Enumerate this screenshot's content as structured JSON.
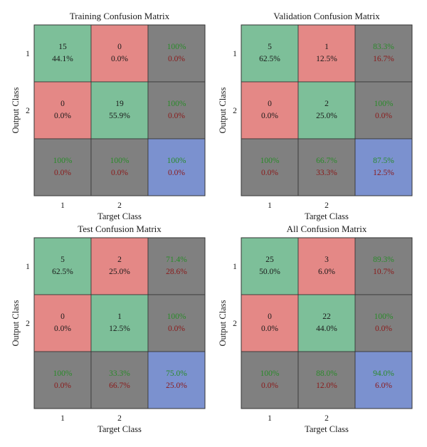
{
  "chart_data": [
    {
      "type": "confusion-matrix",
      "title": "Training Confusion Matrix",
      "xlabel": "Target Class",
      "ylabel": "Output Class",
      "x_ticks": [
        "1",
        "2"
      ],
      "y_ticks": [
        "1",
        "2"
      ],
      "cells": [
        [
          {
            "count": "15",
            "pct": "44.1%"
          },
          {
            "count": "0",
            "pct": "0.0%"
          },
          {
            "top": "100%",
            "bottom": "0.0%"
          }
        ],
        [
          {
            "count": "0",
            "pct": "0.0%"
          },
          {
            "count": "19",
            "pct": "55.9%"
          },
          {
            "top": "100%",
            "bottom": "0.0%"
          }
        ],
        [
          {
            "top": "100%",
            "bottom": "0.0%"
          },
          {
            "top": "100%",
            "bottom": "0.0%"
          },
          {
            "top": "100%",
            "bottom": "0.0%"
          }
        ]
      ]
    },
    {
      "type": "confusion-matrix",
      "title": "Validation Confusion Matrix",
      "xlabel": "Target Class",
      "ylabel": "Output Class",
      "x_ticks": [
        "1",
        "2"
      ],
      "y_ticks": [
        "1",
        "2"
      ],
      "cells": [
        [
          {
            "count": "5",
            "pct": "62.5%"
          },
          {
            "count": "1",
            "pct": "12.5%"
          },
          {
            "top": "83.3%",
            "bottom": "16.7%"
          }
        ],
        [
          {
            "count": "0",
            "pct": "0.0%"
          },
          {
            "count": "2",
            "pct": "25.0%"
          },
          {
            "top": "100%",
            "bottom": "0.0%"
          }
        ],
        [
          {
            "top": "100%",
            "bottom": "0.0%"
          },
          {
            "top": "66.7%",
            "bottom": "33.3%"
          },
          {
            "top": "87.5%",
            "bottom": "12.5%"
          }
        ]
      ]
    },
    {
      "type": "confusion-matrix",
      "title": "Test Confusion Matrix",
      "xlabel": "Target Class",
      "ylabel": "Output Class",
      "x_ticks": [
        "1",
        "2"
      ],
      "y_ticks": [
        "1",
        "2"
      ],
      "cells": [
        [
          {
            "count": "5",
            "pct": "62.5%"
          },
          {
            "count": "2",
            "pct": "25.0%"
          },
          {
            "top": "71.4%",
            "bottom": "28.6%"
          }
        ],
        [
          {
            "count": "0",
            "pct": "0.0%"
          },
          {
            "count": "1",
            "pct": "12.5%"
          },
          {
            "top": "100%",
            "bottom": "0.0%"
          }
        ],
        [
          {
            "top": "100%",
            "bottom": "0.0%"
          },
          {
            "top": "33.3%",
            "bottom": "66.7%"
          },
          {
            "top": "75.0%",
            "bottom": "25.0%"
          }
        ]
      ]
    },
    {
      "type": "confusion-matrix",
      "title": "All Confusion Matrix",
      "xlabel": "Target Class",
      "ylabel": "Output Class",
      "x_ticks": [
        "1",
        "2"
      ],
      "y_ticks": [
        "1",
        "2"
      ],
      "cells": [
        [
          {
            "count": "25",
            "pct": "50.0%"
          },
          {
            "count": "3",
            "pct": "6.0%"
          },
          {
            "top": "89.3%",
            "bottom": "10.7%"
          }
        ],
        [
          {
            "count": "0",
            "pct": "0.0%"
          },
          {
            "count": "22",
            "pct": "44.0%"
          },
          {
            "top": "100%",
            "bottom": "0.0%"
          }
        ],
        [
          {
            "top": "100%",
            "bottom": "0.0%"
          },
          {
            "top": "88.0%",
            "bottom": "12.0%"
          },
          {
            "top": "94.0%",
            "bottom": "6.0%"
          }
        ]
      ]
    }
  ],
  "colors": {
    "correct": "#7dbf99",
    "incorrect": "#e48886",
    "summary": "#808080",
    "overall": "#7b91cf",
    "text_dark": "#1a1a1a",
    "text_green": "#2a8a2a",
    "text_red": "#8a1a1a",
    "grid": "#333333"
  }
}
